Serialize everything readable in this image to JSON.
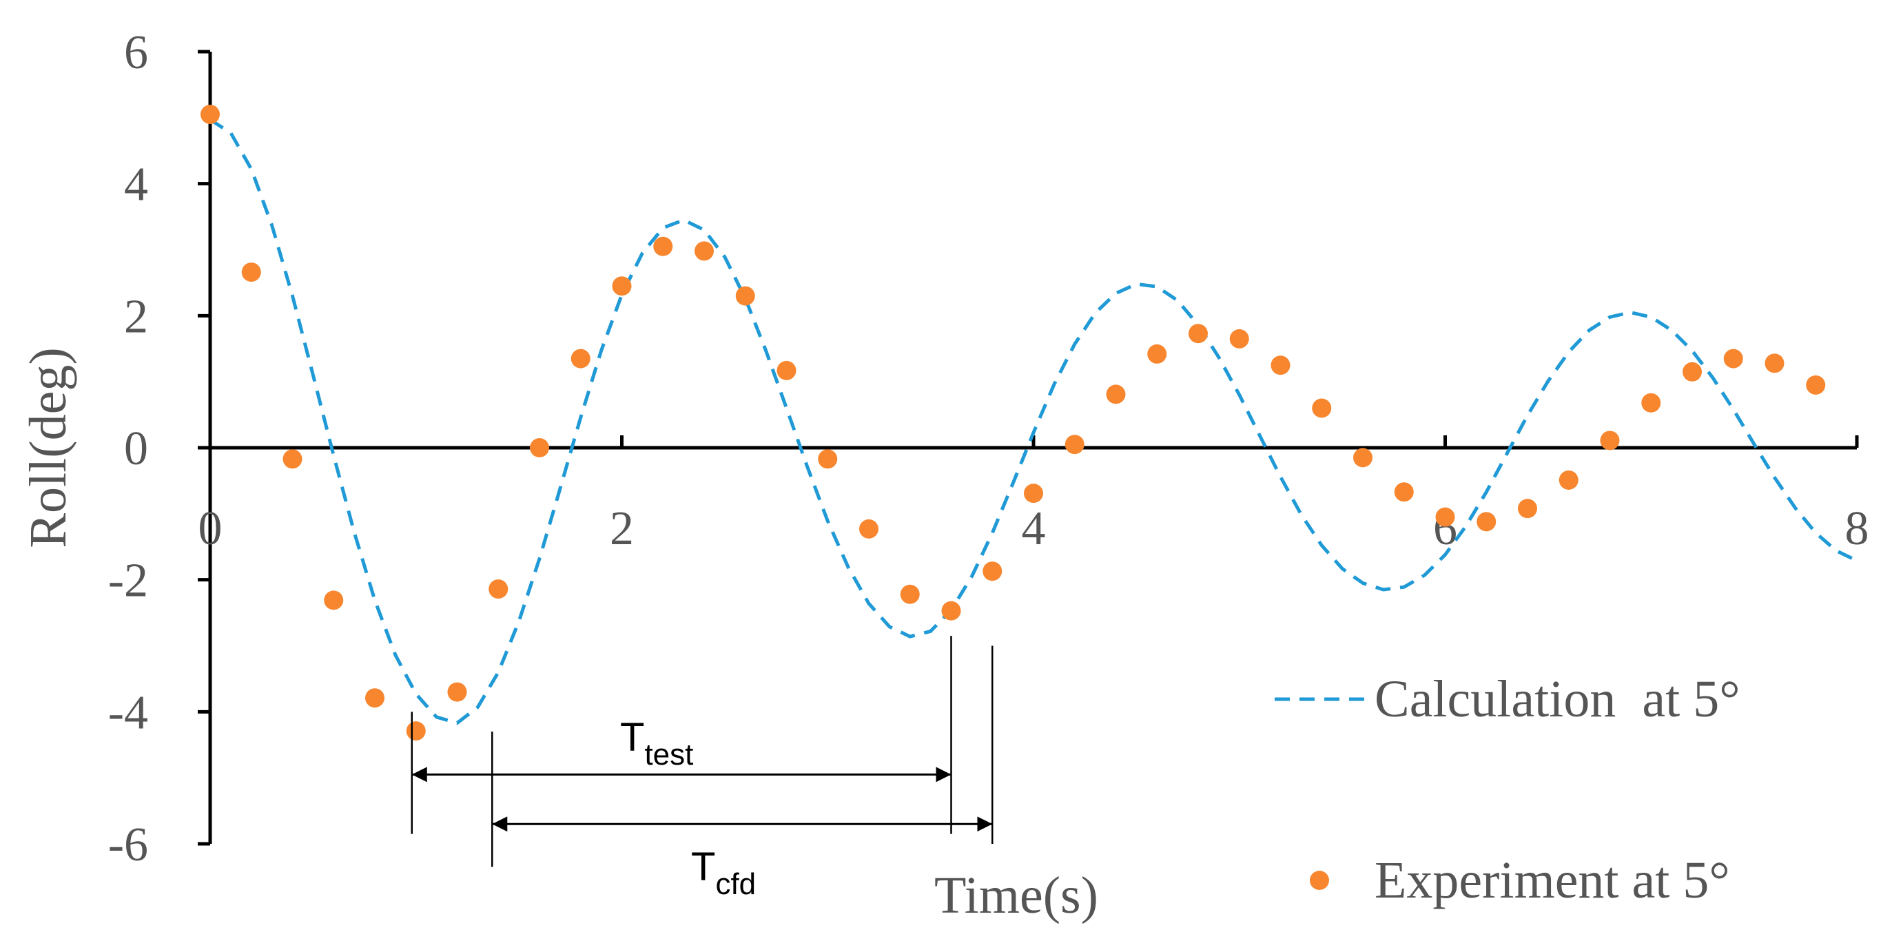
{
  "chart_data": {
    "type": "line",
    "xlabel": "Time(s)",
    "ylabel": "Roll(deg)",
    "xlim": [
      0,
      8
    ],
    "ylim": [
      -6,
      6
    ],
    "xticks": [
      "0",
      "2",
      "4",
      "6",
      "8"
    ],
    "yticks": [
      "6",
      "4",
      "2",
      "0",
      "-2",
      "-4",
      "-6"
    ],
    "grid": false,
    "legend_position": "bottom-right",
    "series": [
      {
        "name": "Calculation  at 5°",
        "style": "dashed-line",
        "color": "#1f9ad6",
        "x": [
          0.0,
          0.1,
          0.2,
          0.3,
          0.4,
          0.5,
          0.6,
          0.7,
          0.8,
          0.9,
          1.0,
          1.1,
          1.2,
          1.3,
          1.4,
          1.5,
          1.6,
          1.7,
          1.8,
          1.9,
          2.0,
          2.1,
          2.2,
          2.3,
          2.4,
          2.5,
          2.6,
          2.7,
          2.8,
          2.9,
          3.0,
          3.1,
          3.2,
          3.3,
          3.4,
          3.5,
          3.6,
          3.7,
          3.8,
          3.9,
          4.0,
          4.1,
          4.2,
          4.3,
          4.4,
          4.5,
          4.6,
          4.7,
          4.8,
          4.9,
          5.0,
          5.1,
          5.2,
          5.3,
          5.4,
          5.5,
          5.6,
          5.7,
          5.8,
          5.9,
          6.0,
          6.1,
          6.2,
          6.3,
          6.4,
          6.5,
          6.6,
          6.7,
          6.8,
          6.9,
          7.0,
          7.1,
          7.2,
          7.3,
          7.4,
          7.5,
          7.6,
          7.7,
          7.8,
          7.9,
          8.0
        ],
        "y": [
          4.97,
          4.77,
          4.22,
          3.37,
          2.3,
          1.1,
          -0.12,
          -1.28,
          -2.31,
          -3.14,
          -3.73,
          -4.08,
          -4.17,
          -3.93,
          -3.4,
          -2.63,
          -1.68,
          -0.62,
          0.46,
          1.47,
          2.32,
          2.95,
          3.33,
          3.45,
          3.3,
          2.89,
          2.26,
          1.47,
          0.6,
          -0.28,
          -1.11,
          -1.81,
          -2.36,
          -2.71,
          -2.86,
          -2.78,
          -2.46,
          -1.95,
          -1.29,
          -0.54,
          0.23,
          0.96,
          1.57,
          2.04,
          2.34,
          2.48,
          2.44,
          2.23,
          1.86,
          1.37,
          0.8,
          0.18,
          -0.44,
          -1.01,
          -1.48,
          -1.83,
          -2.05,
          -2.15,
          -2.11,
          -1.93,
          -1.62,
          -1.19,
          -0.67,
          -0.09,
          0.49,
          1.01,
          1.45,
          1.78,
          1.98,
          2.05,
          1.98,
          1.78,
          1.47,
          1.06,
          0.58,
          0.06,
          -0.45,
          -0.91,
          -1.29,
          -1.56,
          -1.71
        ]
      },
      {
        "name": "Experiment at 5°",
        "style": "markers",
        "color": "#f7862e",
        "x": [
          0.0,
          0.2,
          0.4,
          0.6,
          0.8,
          1.0,
          1.2,
          1.4,
          1.6,
          1.8,
          2.0,
          2.2,
          2.4,
          2.6,
          2.8,
          3.0,
          3.2,
          3.4,
          3.6,
          3.8,
          4.0,
          4.2,
          4.4,
          4.6,
          4.8,
          5.0,
          5.2,
          5.4,
          5.6,
          5.8,
          6.0,
          6.2,
          6.4,
          6.6,
          6.8,
          7.0,
          7.2,
          7.4,
          7.6,
          7.8
        ],
        "y": [
          5.05,
          2.66,
          -0.17,
          -2.31,
          -3.79,
          -4.29,
          -3.7,
          -2.14,
          0.0,
          1.35,
          2.45,
          3.05,
          2.98,
          2.3,
          1.17,
          -0.17,
          -1.23,
          -2.22,
          -2.47,
          -1.87,
          -0.69,
          0.05,
          0.81,
          1.42,
          1.73,
          1.65,
          1.25,
          0.6,
          -0.15,
          -0.67,
          -1.05,
          -1.12,
          -0.92,
          -0.49,
          0.11,
          0.68,
          1.15,
          1.35,
          1.28,
          0.95
        ]
      }
    ],
    "annotations": {
      "t_test": {
        "label_main": "T",
        "label_sub": "test",
        "x_start": 0.98,
        "x_end": 3.6,
        "y": -4.95
      },
      "t_cfd": {
        "label_main": "T",
        "label_sub": "cfd",
        "x_start": 1.37,
        "x_end": 3.8,
        "y": -5.7
      }
    }
  }
}
